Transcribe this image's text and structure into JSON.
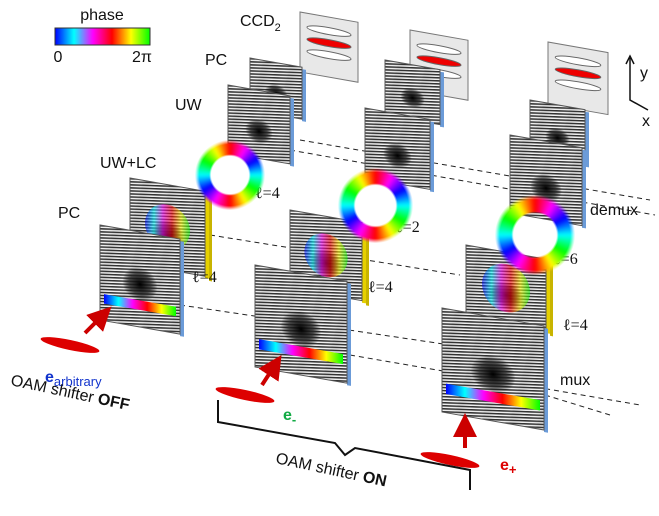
{
  "colorbar": {
    "title": "phase",
    "min": "0",
    "max": "2π"
  },
  "labels": {
    "ccd": "CCD",
    "ccd_sub": "2",
    "pc_top": "PC",
    "uw": "UW",
    "uw_lc": "UW+LC",
    "pc_bottom": "PC",
    "demux": "demux",
    "mux": "mux"
  },
  "modes": [
    "ℓ=4",
    "ℓ=2",
    "ℓ=6",
    "ℓ=4",
    "ℓ=4",
    "ℓ=4"
  ],
  "inputs": [
    {
      "symbol": "e",
      "sub": "arbitrary"
    },
    {
      "symbol": "e",
      "sub": "-"
    },
    {
      "symbol": "e",
      "sub": "+"
    }
  ],
  "captions": {
    "off": "OAM shifter ",
    "off_bold": "OFF",
    "on": "OAM shifter ",
    "on_bold": "ON"
  },
  "axes": {
    "y": "y",
    "x": "x"
  }
}
